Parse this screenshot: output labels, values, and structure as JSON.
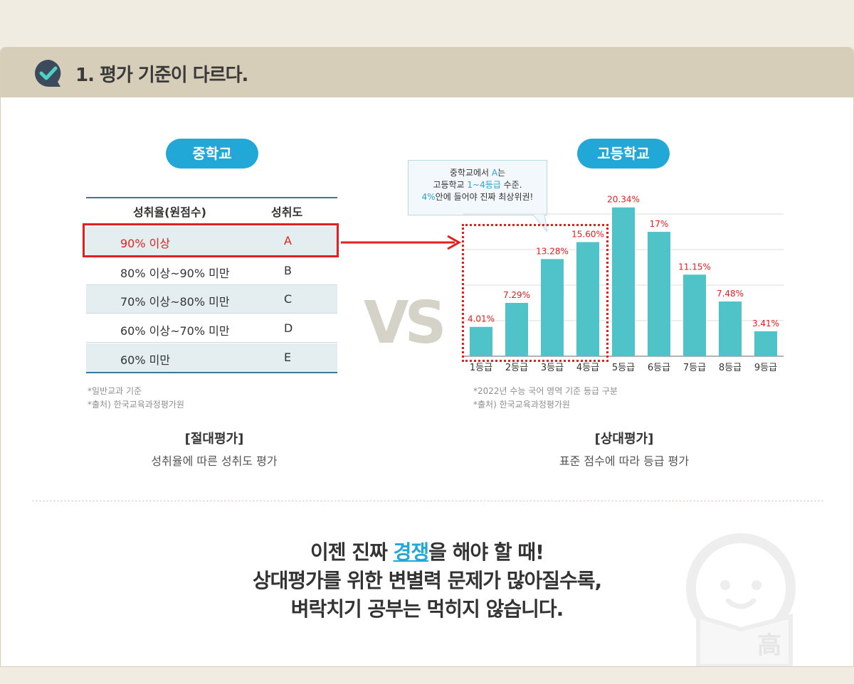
{
  "header": {
    "title": "1. 평가 기준이 다르다."
  },
  "middle_school": {
    "label": "중학교",
    "table": {
      "headers": [
        "성취율(원점수)",
        "성취도"
      ],
      "rows": [
        {
          "range": "90% 이상",
          "grade": "A"
        },
        {
          "range": "80% 이상~90% 미만",
          "grade": "B"
        },
        {
          "range": "70% 이상~80% 미만",
          "grade": "C"
        },
        {
          "range": "60% 이상~70% 미만",
          "grade": "D"
        },
        {
          "range": "60% 미만",
          "grade": "E"
        }
      ]
    },
    "notes": [
      "*일반교과 기준",
      "*출처) 한국교육과정평가원"
    ],
    "caption_title": "[절대평가]",
    "caption_sub": "성취율에 따른 성취도 평가"
  },
  "vs": "VS",
  "high_school": {
    "label": "고등학교",
    "callout": {
      "line1a": "중학교에서 ",
      "line1b": "A",
      "line1c": "는",
      "line2a": "고등학교 ",
      "line2b": "1~4등급",
      "line2c": " 수준.",
      "line3a": "4%",
      "line3b": "안에 들어야 진짜 최상위권!"
    },
    "notes": [
      "*2022년 수능 국어 영역 기준 등급 구분",
      "*출처) 한국교육과정평가원"
    ],
    "caption_title": "[상대평가]",
    "caption_sub": "표준 점수에 따라 등급 평가"
  },
  "chart_data": {
    "type": "bar",
    "categories": [
      "1등급",
      "2등급",
      "3등급",
      "4등급",
      "5등급",
      "6등급",
      "7등급",
      "8등급",
      "9등급"
    ],
    "values": [
      4.01,
      7.29,
      13.28,
      15.6,
      20.34,
      17,
      11.15,
      7.48,
      3.41
    ],
    "value_labels": [
      "4.01%",
      "7.29%",
      "13.28%",
      "15.60%",
      "20.34%",
      "17%",
      "11.15%",
      "7.48%",
      "3.41%"
    ],
    "title": "",
    "xlabel": "",
    "ylabel": "",
    "ylim": [
      0,
      20
    ],
    "grid": true,
    "bar_color": "#4fc3c8",
    "label_color": "#e32020"
  },
  "bottom_message": {
    "line1a": "이젠 진짜 ",
    "line1b": "경쟁",
    "line1c": "을 해야 할 때!",
    "line2": "상대평가를 위한 변별력 문제가 많아질수록,",
    "line3": "벼락치기 공부는 먹히지 않습니다."
  },
  "mascot": {
    "char": "高"
  },
  "colors": {
    "accent": "#22a8d6",
    "highlight": "#e32020",
    "bar": "#4fc3c8"
  }
}
